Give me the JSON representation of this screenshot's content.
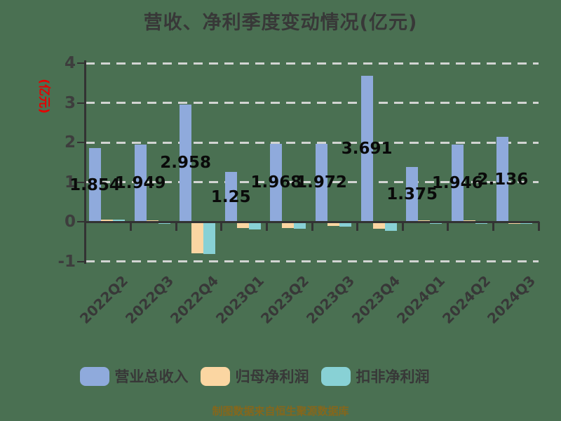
{
  "title": "营收、净利季度变动情况(亿元)",
  "y_axis": {
    "name": "(亿元)",
    "name_color": "#e60000",
    "tick_labels": [
      "4",
      "3",
      "2",
      "1",
      "0",
      "-1"
    ]
  },
  "footer": "制图数据来自恒生聚源数据库",
  "legend": [
    {
      "label": "营业总收入",
      "color": "#8faadc"
    },
    {
      "label": "归母净利润",
      "color": "#fbd6a2"
    },
    {
      "label": "扣非净利润",
      "color": "#88d1d5"
    }
  ],
  "colors": {
    "background": "#4a7052",
    "axis": "#333333",
    "gridline": "#d2d4d2",
    "title_text": "#383838",
    "value_label_text": "#0a0a0a",
    "footer_text": "#85671c"
  },
  "chart_data": {
    "type": "bar",
    "title": "营收、净利季度变动情况(亿元)",
    "ylabel": "(亿元)",
    "ylim": [
      -1,
      4
    ],
    "y_ticks": [
      4,
      3,
      2,
      1,
      0,
      -1
    ],
    "grid": "horizontal dashed",
    "legend_position": "bottom",
    "categories": [
      "2022Q2",
      "2022Q3",
      "2022Q4",
      "2023Q1",
      "2023Q2",
      "2023Q3",
      "2023Q4",
      "2024Q1",
      "2024Q2",
      "2024Q3"
    ],
    "series": [
      {
        "name": "营业总收入",
        "color": "#8faadc",
        "values": [
          1.854,
          1.949,
          2.958,
          1.25,
          1.968,
          1.972,
          3.691,
          1.375,
          1.946,
          2.136
        ],
        "data_labels": [
          "1.854",
          "1.949",
          "2.958",
          "1.25",
          "1.968",
          "1.972",
          "3.691",
          "1.375",
          "1.946",
          "2.136"
        ]
      },
      {
        "name": "归母净利润",
        "color": "#fbd6a2",
        "values": [
          0.06,
          0.01,
          -0.79,
          -0.16,
          -0.15,
          -0.11,
          -0.18,
          0.04,
          0.01,
          -0.01
        ],
        "data_labels": []
      },
      {
        "name": "扣非净利润",
        "color": "#88d1d5",
        "values": [
          0.05,
          -0.02,
          -0.81,
          -0.2,
          -0.17,
          -0.13,
          -0.23,
          -0.02,
          -0.02,
          -0.05
        ],
        "data_labels": []
      }
    ]
  }
}
